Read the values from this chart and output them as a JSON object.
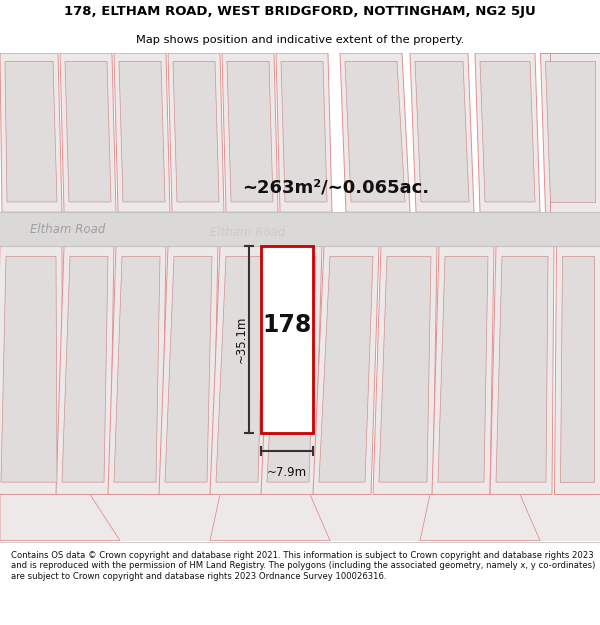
{
  "title_line1": "178, ELTHAM ROAD, WEST BRIDGFORD, NOTTINGHAM, NG2 5JU",
  "title_line2": "Map shows position and indicative extent of the property.",
  "area_text": "~263m²/~0.065ac.",
  "road_label_left": "Eltham Road",
  "road_label_center": "Eltham Road",
  "property_number": "178",
  "dim_height": "~35.1m",
  "dim_width": "~7.9m",
  "footer_text": "Contains OS data © Crown copyright and database right 2021. This information is subject to Crown copyright and database rights 2023 and is reproduced with the permission of HM Land Registry. The polygons (including the associated geometry, namely x, y co-ordinates) are subject to Crown copyright and database rights 2023 Ordnance Survey 100026316.",
  "map_bg": "#f7f4f4",
  "plot_fill": "#ede9e9",
  "plot_edge": "#e09090",
  "inner_fill": "#e0dcdc",
  "inner_edge": "#d09090",
  "road_fill": "#dbd8d8",
  "road_edge": "#c5c2c2",
  "highlight_color": "#cc0000",
  "title_bg": "#ffffff",
  "footer_bg": "#ffffff",
  "dim_color": "#333333",
  "text_dark": "#111111",
  "road_text_left": "#a0a0a0",
  "road_text_center": "#cccccc"
}
